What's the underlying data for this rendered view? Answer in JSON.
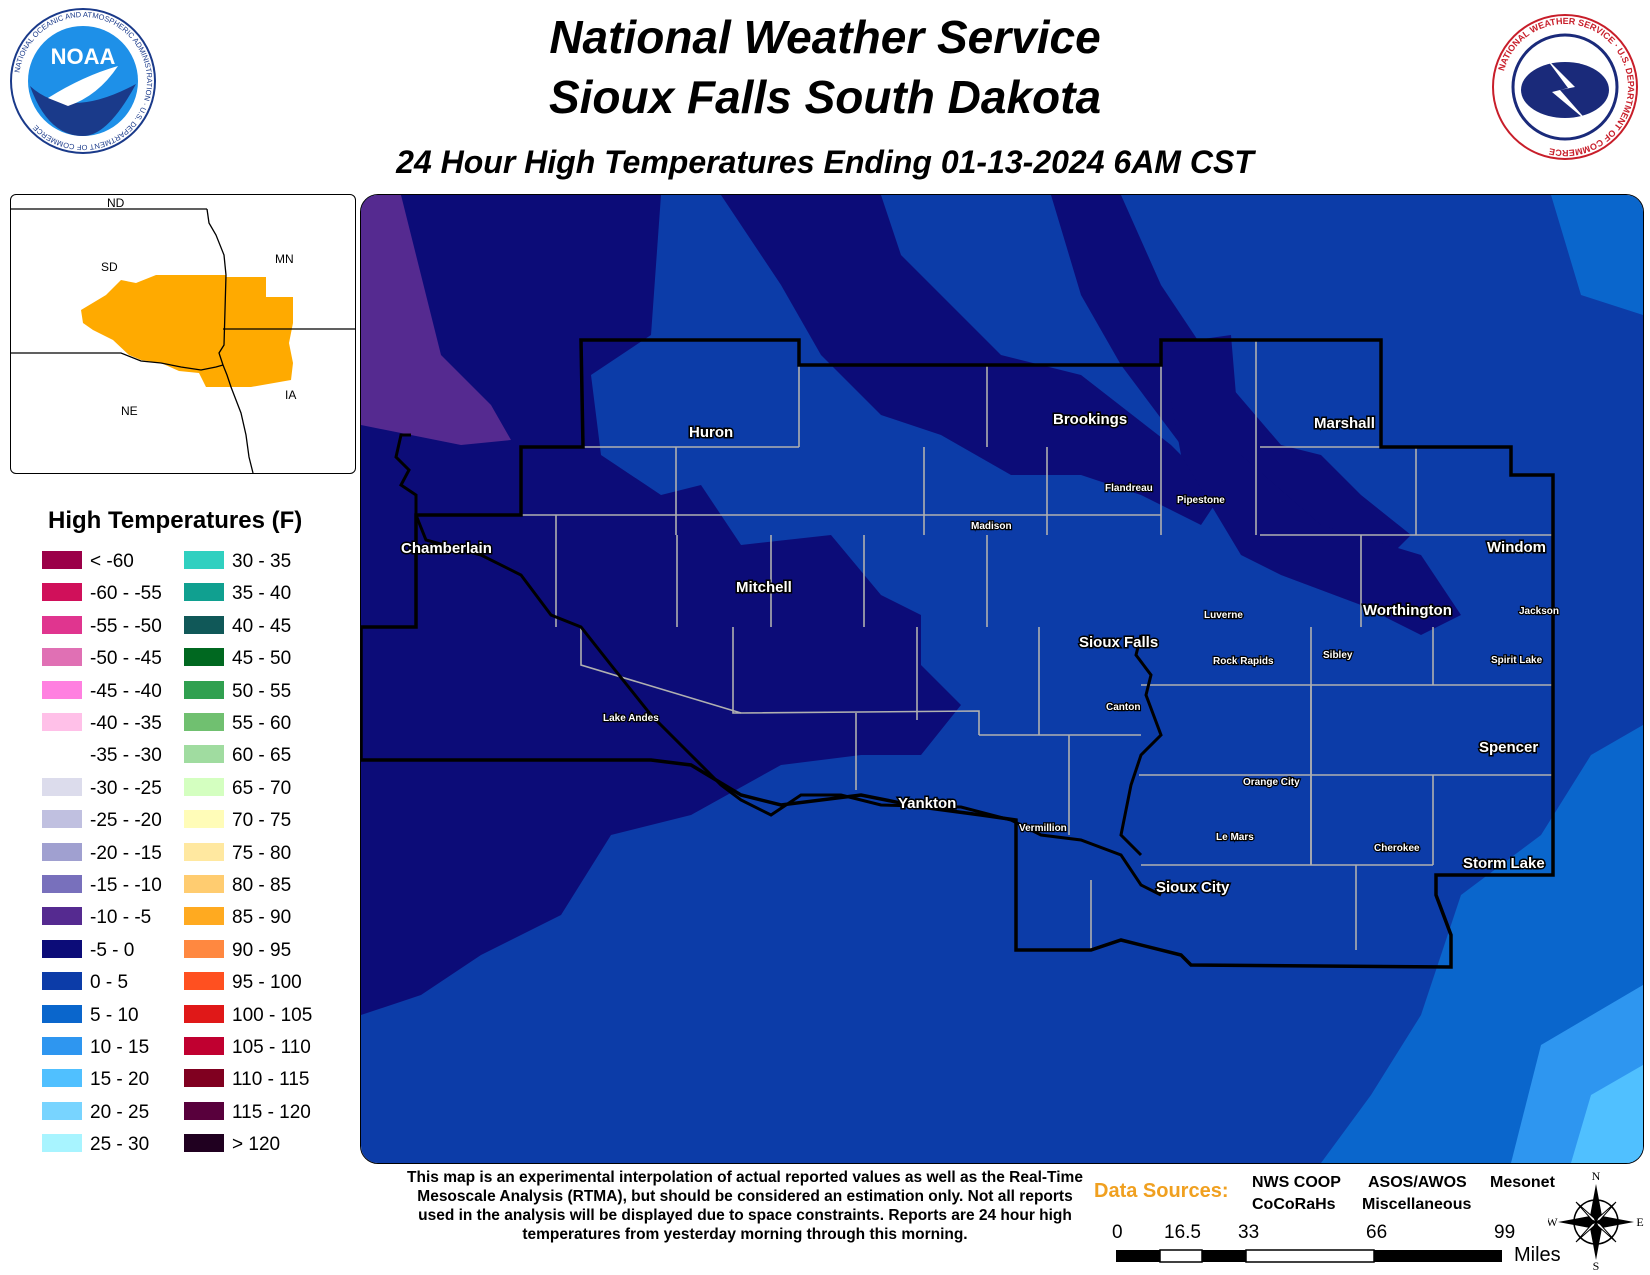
{
  "header": {
    "title_line1": "National Weather Service",
    "title_line2": "Sioux Falls South Dakota",
    "subtitle": "24 Hour High Temperatures Ending 01-13-2024 6AM CST"
  },
  "logos": {
    "noara_text": "NOAA",
    "noaa_ring": "NATIONAL OCEANIC AND ATMOSPHERIC ADMINISTRATION · U.S. DEPARTMENT OF COMMERCE",
    "nws_ring": "NATIONAL WEATHER SERVICE · U.S. DEPARTMENT OF COMMERCE"
  },
  "inset": {
    "states": [
      "ND",
      "SD",
      "MN",
      "NE",
      "IA"
    ],
    "highlight_color": "#ffaa00"
  },
  "legend": {
    "title": "High Temperatures (F)",
    "items": [
      {
        "label": "< -60",
        "color": "#9b0048"
      },
      {
        "label": "-60 - -55",
        "color": "#d0105a"
      },
      {
        "label": "-55 - -50",
        "color": "#e0358f"
      },
      {
        "label": "-50 - -45",
        "color": "#e070b4"
      },
      {
        "label": "-45 - -40",
        "color": "#ff80e0"
      },
      {
        "label": "-40 - -35",
        "color": "#ffc0e8"
      },
      {
        "label": "-35 - -30",
        "color": "#ffffff"
      },
      {
        "label": "-30 - -25",
        "color": "#dcdcec"
      },
      {
        "label": "-25 - -20",
        "color": "#c0c0e0"
      },
      {
        "label": "-20 - -15",
        "color": "#a0a0d0"
      },
      {
        "label": "-15 - -10",
        "color": "#7870bc"
      },
      {
        "label": "-10 - -5",
        "color": "#552a90"
      },
      {
        "label": "-5 - 0",
        "color": "#0c0c78"
      },
      {
        "label": "0 - 5",
        "color": "#0c3ca8"
      },
      {
        "label": "5 - 10",
        "color": "#0a66cc"
      },
      {
        "label": "10 - 15",
        "color": "#2e96f0"
      },
      {
        "label": "15 - 20",
        "color": "#50c0ff"
      },
      {
        "label": "20 - 25",
        "color": "#78d4ff"
      },
      {
        "label": "25 - 30",
        "color": "#a8f4ff"
      },
      {
        "label": "30 - 35",
        "color": "#30d0c0"
      },
      {
        "label": "35 - 40",
        "color": "#10a090"
      },
      {
        "label": "40 - 45",
        "color": "#105858"
      },
      {
        "label": "45 - 50",
        "color": "#006820"
      },
      {
        "label": "50 - 55",
        "color": "#30a050"
      },
      {
        "label": "55 - 60",
        "color": "#70c070"
      },
      {
        "label": "60 - 65",
        "color": "#a0dca0"
      },
      {
        "label": "65 - 70",
        "color": "#d4ffc0"
      },
      {
        "label": "70 - 75",
        "color": "#fffcb8"
      },
      {
        "label": "75 - 80",
        "color": "#ffe8a0"
      },
      {
        "label": "80 - 85",
        "color": "#ffcc70"
      },
      {
        "label": "85 - 90",
        "color": "#ffaa20"
      },
      {
        "label": "90 - 95",
        "color": "#ff8840"
      },
      {
        "label": "95 - 100",
        "color": "#ff5020"
      },
      {
        "label": "100 - 105",
        "color": "#e01818"
      },
      {
        "label": "105 - 110",
        "color": "#c00030"
      },
      {
        "label": "110 - 115",
        "color": "#800020"
      },
      {
        "label": "115 - 120",
        "color": "#58003c"
      },
      {
        "label": "> 120",
        "color": "#200020"
      }
    ]
  },
  "cities": [
    {
      "name": "Huron",
      "size": "large"
    },
    {
      "name": "Brookings",
      "size": "large"
    },
    {
      "name": "Marshall",
      "size": "large"
    },
    {
      "name": "Flandreau",
      "size": "small"
    },
    {
      "name": "Pipestone",
      "size": "small"
    },
    {
      "name": "Madison",
      "size": "small"
    },
    {
      "name": "Chamberlain",
      "size": "large"
    },
    {
      "name": "Mitchell",
      "size": "large"
    },
    {
      "name": "Windom",
      "size": "large"
    },
    {
      "name": "Luverne",
      "size": "small"
    },
    {
      "name": "Worthington",
      "size": "large"
    },
    {
      "name": "Jackson",
      "size": "small"
    },
    {
      "name": "Sioux Falls",
      "size": "large"
    },
    {
      "name": "Rock Rapids",
      "size": "small"
    },
    {
      "name": "Sibley",
      "size": "small"
    },
    {
      "name": "Spirit Lake",
      "size": "small"
    },
    {
      "name": "Lake Andes",
      "size": "small"
    },
    {
      "name": "Canton",
      "size": "small"
    },
    {
      "name": "Spencer",
      "size": "large"
    },
    {
      "name": "Orange City",
      "size": "small"
    },
    {
      "name": "Yankton",
      "size": "large"
    },
    {
      "name": "Vermillion",
      "size": "small"
    },
    {
      "name": "Le Mars",
      "size": "small"
    },
    {
      "name": "Cherokee",
      "size": "small"
    },
    {
      "name": "Storm Lake",
      "size": "large"
    },
    {
      "name": "Sioux City",
      "size": "large"
    }
  ],
  "disclaimer": "This map is an experimental interpolation of actual reported values as well as the Real-Time Mesoscale Analysis (RTMA), but should be considered an estimation only. Not all reports used in the analysis will be displayed due to space constraints. Reports are 24 hour high temperatures from yesterday morning through this morning.",
  "data_sources": {
    "label": "Data Sources:",
    "items": [
      {
        "name": "NWS COOP",
        "color": "#808080"
      },
      {
        "name": "ASOS/AWOS",
        "color": "#e02020"
      },
      {
        "name": "Mesonet",
        "color": "#30a030"
      },
      {
        "name": "CoCoRaHs",
        "color": "#2080e0"
      },
      {
        "name": "Miscellaneous",
        "color": "#000000"
      }
    ]
  },
  "scale": {
    "ticks": [
      "0",
      "16.5",
      "33",
      "66",
      "99"
    ],
    "unit": "Miles"
  },
  "compass": {
    "n": "N",
    "s": "S",
    "e": "E",
    "w": "W"
  }
}
